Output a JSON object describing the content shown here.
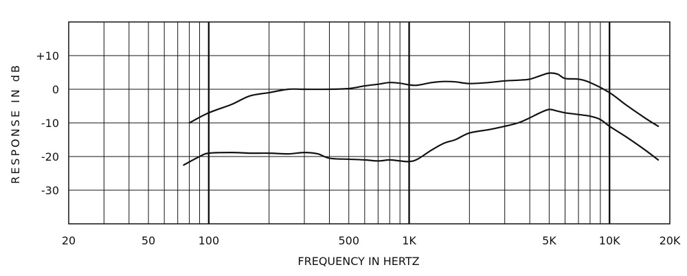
{
  "chart_data": {
    "type": "line",
    "xlabel": "FREQUENCY IN HERTZ",
    "ylabel": "RESPONSE IN dB",
    "x_scale": "log",
    "xlim": [
      20,
      20000
    ],
    "ylim": [
      -40,
      20
    ],
    "grid": true,
    "x_ticks": [
      {
        "value": 20,
        "label": "20"
      },
      {
        "value": 50,
        "label": "50"
      },
      {
        "value": 100,
        "label": "100"
      },
      {
        "value": 500,
        "label": "500"
      },
      {
        "value": 1000,
        "label": "1K"
      },
      {
        "value": 5000,
        "label": "5K"
      },
      {
        "value": 10000,
        "label": "10K"
      },
      {
        "value": 20000,
        "label": "20K"
      }
    ],
    "y_ticks": [
      {
        "value": 10,
        "label": "+10"
      },
      {
        "value": 0,
        "label": "0"
      },
      {
        "value": -10,
        "label": "-10"
      },
      {
        "value": -20,
        "label": "-20"
      },
      {
        "value": -30,
        "label": "-30"
      }
    ],
    "series": [
      {
        "x": [
          80,
          100,
          130,
          160,
          200,
          250,
          300,
          400,
          500,
          600,
          700,
          800,
          900,
          1000,
          1100,
          1300,
          1500,
          1700,
          2000,
          2500,
          3000,
          3500,
          4000,
          4500,
          5000,
          5500,
          6000,
          7000,
          8000,
          10000,
          12000,
          15000,
          17500
        ],
        "values": [
          -10,
          -7,
          -4.5,
          -2,
          -1,
          0,
          0,
          0,
          0.2,
          1,
          1.5,
          2,
          1.8,
          1.3,
          1.2,
          2,
          2.3,
          2.2,
          1.7,
          2,
          2.5,
          2.7,
          3,
          4,
          4.8,
          4.5,
          3.2,
          3,
          2,
          -1,
          -4.5,
          -8.5,
          -11
        ]
      },
      {
        "x": [
          75,
          90,
          100,
          130,
          160,
          200,
          250,
          300,
          350,
          400,
          500,
          600,
          700,
          800,
          900,
          1000,
          1100,
          1300,
          1500,
          1700,
          2000,
          2500,
          3000,
          3500,
          4000,
          4500,
          5000,
          5500,
          6000,
          7000,
          8000,
          9000,
          10000,
          12000,
          15000,
          17500
        ],
        "values": [
          -22.5,
          -20,
          -19,
          -18.8,
          -19,
          -19,
          -19.2,
          -18.8,
          -19.2,
          -20.5,
          -20.8,
          -21,
          -21.3,
          -21,
          -21.3,
          -21.5,
          -20.8,
          -18,
          -16,
          -15,
          -13,
          -12,
          -11,
          -10,
          -8.5,
          -7,
          -6,
          -6.5,
          -7,
          -7.5,
          -8,
          -9,
          -11,
          -14,
          -18,
          -21
        ]
      }
    ]
  }
}
